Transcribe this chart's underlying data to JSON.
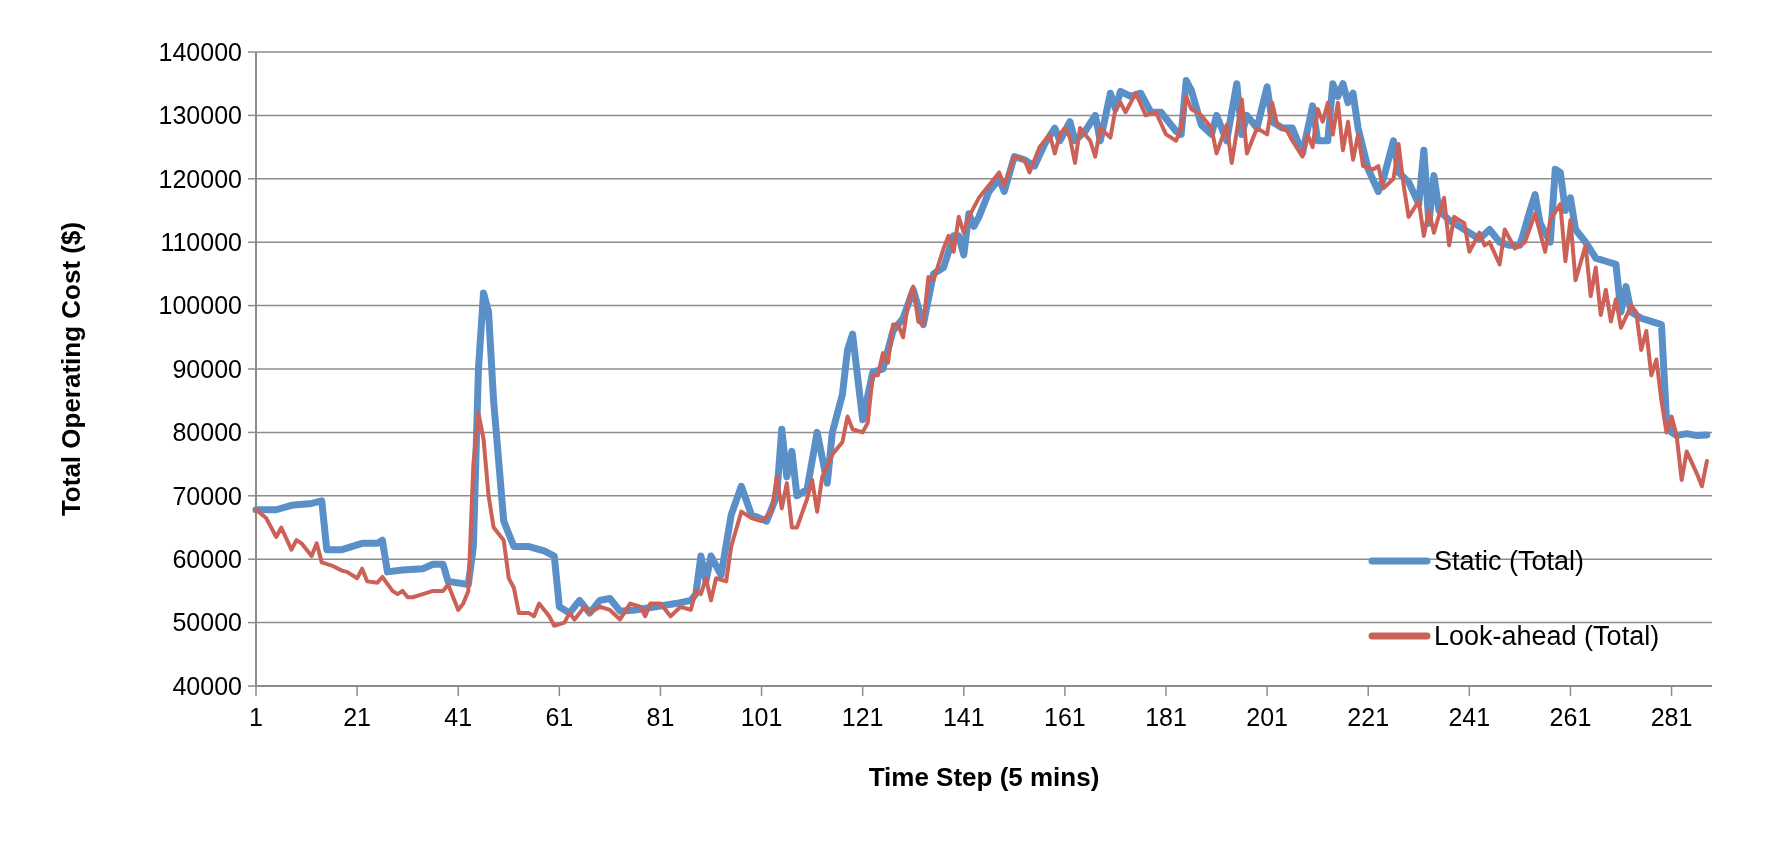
{
  "chart_data": {
    "type": "line",
    "xlabel": "Time Step (5 mins)",
    "ylabel": "Total Operating Cost ($)",
    "xlim": [
      1,
      289
    ],
    "xticks": [
      1,
      21,
      41,
      61,
      81,
      101,
      121,
      141,
      161,
      181,
      201,
      221,
      241,
      261,
      281
    ],
    "ylim": [
      40000,
      140000
    ],
    "yticks": [
      40000,
      50000,
      60000,
      70000,
      80000,
      90000,
      100000,
      110000,
      120000,
      130000,
      140000
    ],
    "grid": "y",
    "legend": "bottom right",
    "line_style": "solid",
    "marker": "none",
    "series": [
      {
        "name": "Static (Total)",
        "color": "#5b8fc7",
        "x": [
          1,
          5,
          8,
          12,
          14,
          15,
          18,
          22,
          25,
          26,
          27,
          30,
          34,
          36,
          38,
          39,
          43,
          44,
          45,
          46,
          47,
          48,
          50,
          52,
          55,
          58,
          60,
          61,
          63,
          65,
          67,
          69,
          71,
          73,
          76,
          80,
          84,
          87,
          88,
          89,
          90,
          91,
          93,
          95,
          97,
          99,
          102,
          104,
          105,
          106,
          107,
          108,
          110,
          112,
          114,
          115,
          117,
          118,
          119,
          121,
          123,
          125,
          127,
          129,
          131,
          133,
          135,
          137,
          139,
          140,
          141,
          142,
          143,
          144,
          146,
          148,
          149,
          151,
          153,
          155,
          157,
          159,
          160,
          162,
          163,
          165,
          167,
          168,
          170,
          171,
          172,
          174,
          176,
          178,
          180,
          183,
          184,
          185,
          186,
          188,
          190,
          191,
          193,
          195,
          196,
          197,
          199,
          201,
          202,
          204,
          206,
          208,
          210,
          211,
          213,
          214,
          215,
          216,
          217,
          218,
          219,
          221,
          223,
          224,
          226,
          227,
          229,
          231,
          232,
          233,
          234,
          235,
          237,
          239,
          241,
          243,
          245,
          247,
          249,
          251,
          253,
          254,
          255,
          257,
          258,
          259,
          260,
          261,
          262,
          264,
          266,
          268,
          270,
          271,
          272,
          273,
          275,
          277,
          279,
          280,
          281,
          282,
          284,
          286,
          288
        ],
        "values": [
          67800,
          67800,
          68500,
          68800,
          69200,
          61500,
          61500,
          62500,
          62500,
          63000,
          58000,
          58300,
          58500,
          59200,
          59200,
          56500,
          56000,
          62000,
          90000,
          102000,
          99000,
          85000,
          66000,
          62000,
          62000,
          61300,
          60500,
          52500,
          51500,
          53500,
          51500,
          53500,
          53800,
          51800,
          52000,
          52500,
          53000,
          53500,
          54500,
          60500,
          56500,
          60500,
          57500,
          67000,
          71500,
          67000,
          66000,
          70000,
          80500,
          73000,
          77000,
          70000,
          71000,
          80000,
          72000,
          80000,
          86000,
          93000,
          95500,
          82000,
          89500,
          90000,
          96000,
          98000,
          102500,
          97000,
          105000,
          106000,
          111000,
          111000,
          108000,
          114500,
          112500,
          114000,
          118000,
          120000,
          118000,
          123500,
          123000,
          122000,
          125500,
          128000,
          126000,
          129000,
          126000,
          127500,
          130000,
          126000,
          133500,
          131000,
          133800,
          133000,
          133500,
          130500,
          130500,
          127500,
          127000,
          135500,
          134000,
          128500,
          127000,
          130000,
          126000,
          135000,
          127000,
          130000,
          128000,
          134500,
          129000,
          128000,
          128000,
          124000,
          131500,
          126000,
          126000,
          135000,
          133000,
          135000,
          132000,
          133500,
          128000,
          121500,
          118000,
          120000,
          126000,
          121000,
          119500,
          116000,
          124500,
          113000,
          120500,
          115000,
          113500,
          112500,
          111500,
          110500,
          112000,
          110000,
          109500,
          109500,
          115000,
          117500,
          113000,
          110000,
          121500,
          121000,
          115000,
          117000,
          112000,
          110000,
          107500,
          107000,
          106500,
          99000,
          103000,
          99000,
          98000,
          97500,
          97000,
          82000,
          80000,
          79500,
          79800,
          79500,
          79600
        ]
      },
      {
        "name": "Look-ahead (Total)",
        "color": "#cc6158",
        "x": [
          1,
          3,
          5,
          6,
          8,
          9,
          10,
          12,
          13,
          14,
          16,
          18,
          19,
          21,
          22,
          23,
          25,
          26,
          28,
          29,
          30,
          31,
          32,
          34,
          36,
          38,
          39,
          41,
          42,
          43,
          44,
          45,
          46,
          47,
          48,
          50,
          51,
          52,
          53,
          55,
          56,
          57,
          59,
          60,
          62,
          63,
          64,
          66,
          67,
          69,
          71,
          73,
          75,
          77,
          78,
          79,
          81,
          83,
          85,
          87,
          88,
          89,
          90,
          91,
          92,
          94,
          95,
          97,
          99,
          101,
          103,
          104,
          105,
          106,
          107,
          108,
          110,
          111,
          112,
          113,
          115,
          117,
          118,
          119,
          121,
          122,
          123,
          124,
          125,
          126,
          127,
          128,
          129,
          130,
          131,
          132,
          133,
          134,
          135,
          137,
          138,
          139,
          140,
          141,
          142,
          144,
          145,
          146,
          148,
          149,
          151,
          153,
          154,
          156,
          158,
          159,
          160,
          161,
          162,
          163,
          164,
          166,
          167,
          168,
          170,
          171,
          172,
          173,
          175,
          177,
          179,
          181,
          183,
          184,
          185,
          186,
          188,
          190,
          191,
          193,
          194,
          196,
          197,
          199,
          201,
          202,
          203,
          205,
          206,
          208,
          209,
          210,
          211,
          212,
          213,
          214,
          215,
          216,
          217,
          218,
          219,
          220,
          222,
          223,
          224,
          226,
          227,
          228,
          229,
          231,
          232,
          233,
          234,
          236,
          237,
          238,
          240,
          241,
          243,
          244,
          245,
          247,
          248,
          249,
          250,
          252,
          254,
          256,
          257,
          259,
          260,
          261,
          262,
          264,
          265,
          266,
          267,
          268,
          269,
          270,
          271,
          273,
          274,
          275,
          276,
          277,
          278,
          279,
          280,
          281,
          282,
          283,
          284,
          286,
          287,
          288
        ],
        "values": [
          67800,
          66500,
          63500,
          65000,
          61500,
          63000,
          62500,
          60500,
          62500,
          59500,
          59000,
          58200,
          58000,
          57000,
          58500,
          56500,
          56300,
          57200,
          55000,
          54500,
          55000,
          54000,
          54000,
          54500,
          55000,
          55000,
          56000,
          52000,
          53000,
          55000,
          75000,
          83000,
          79000,
          70000,
          65000,
          63000,
          57000,
          55500,
          51500,
          51500,
          51000,
          53000,
          51000,
          49500,
          50000,
          51500,
          50500,
          52500,
          51500,
          52500,
          52000,
          50500,
          53000,
          52500,
          51000,
          53000,
          53000,
          51000,
          52500,
          52000,
          55000,
          54500,
          57000,
          53500,
          57000,
          56500,
          62000,
          67500,
          66500,
          66000,
          67500,
          73000,
          68000,
          72000,
          65000,
          65000,
          69500,
          72500,
          67500,
          73000,
          76500,
          78500,
          82500,
          80500,
          80000,
          81500,
          89000,
          89000,
          92500,
          91000,
          97000,
          97000,
          95000,
          100500,
          103000,
          97500,
          97000,
          104500,
          104000,
          109000,
          111000,
          108500,
          114000,
          111500,
          114000,
          117000,
          118000,
          119000,
          121000,
          119000,
          123500,
          123000,
          121000,
          125000,
          127000,
          124000,
          127000,
          128000,
          126500,
          122500,
          128000,
          126000,
          123500,
          128000,
          126500,
          131000,
          132000,
          130500,
          133500,
          130000,
          130500,
          127000,
          126000,
          128000,
          133000,
          131000,
          130000,
          128000,
          124000,
          128500,
          122500,
          132500,
          124000,
          128000,
          127000,
          132000,
          128500,
          127500,
          126000,
          123500,
          127000,
          125000,
          131000,
          129000,
          132000,
          127000,
          132000,
          124500,
          129000,
          123000,
          127000,
          122000,
          121500,
          122000,
          118500,
          120000,
          125500,
          119000,
          114000,
          116500,
          111000,
          115000,
          111500,
          117000,
          109500,
          114000,
          113000,
          108500,
          111500,
          109500,
          110000,
          106500,
          112000,
          110500,
          109000,
          110000,
          114500,
          108500,
          113500,
          116000,
          107000,
          113500,
          104000,
          109500,
          101500,
          106000,
          98500,
          102500,
          97500,
          101000,
          96500,
          100000,
          99000,
          93000,
          96000,
          89000,
          91500,
          85000,
          80000,
          82500,
          79500,
          72500,
          77000,
          73500,
          71500,
          75500
        ]
      }
    ]
  }
}
